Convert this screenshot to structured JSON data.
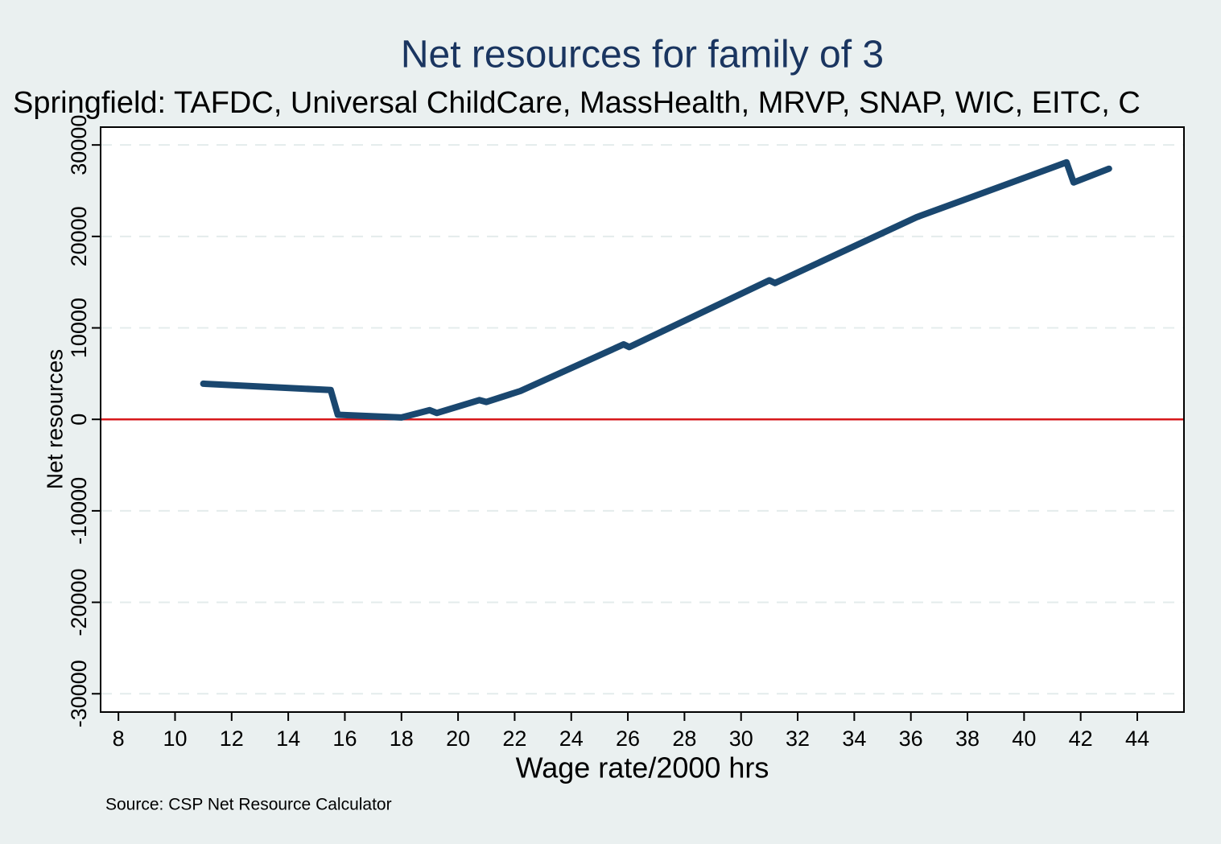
{
  "chart_data": {
    "type": "line",
    "title": "Net resources for family of 3",
    "subtitle": "Springfield: TAFDC, Universal ChildCare, MassHealth, MRVP, SNAP, WIC, EITC, C",
    "x_label": "Wage rate/2000 hrs",
    "y_label": "Net resources",
    "note": "Source: CSP Net Resource Calculator",
    "x": [
      11,
      15.5,
      15.75,
      18,
      19,
      19.25,
      20.75,
      21,
      22.2,
      25.85,
      26.05,
      31,
      31.2,
      36.2,
      41.5,
      41.75,
      43
    ],
    "series": [
      {
        "name": "Net resources",
        "color": "#1a476f",
        "values": [
          3900,
          3200,
          500,
          200,
          1000,
          700,
          2100,
          1900,
          3100,
          8200,
          7900,
          15200,
          14900,
          22100,
          28100,
          25900,
          27400
        ]
      }
    ],
    "xlim": [
      7.37,
      45.65
    ],
    "ylim": [
      -32000,
      31950
    ],
    "xticks": [
      8,
      10,
      12,
      14,
      16,
      18,
      20,
      22,
      24,
      26,
      28,
      30,
      32,
      34,
      36,
      38,
      40,
      42,
      44
    ],
    "yticks": [
      -30000,
      -20000,
      -10000,
      0,
      10000,
      20000,
      30000
    ],
    "grid": true,
    "reference_line": {
      "value": 0,
      "color": "#d7191c"
    }
  }
}
